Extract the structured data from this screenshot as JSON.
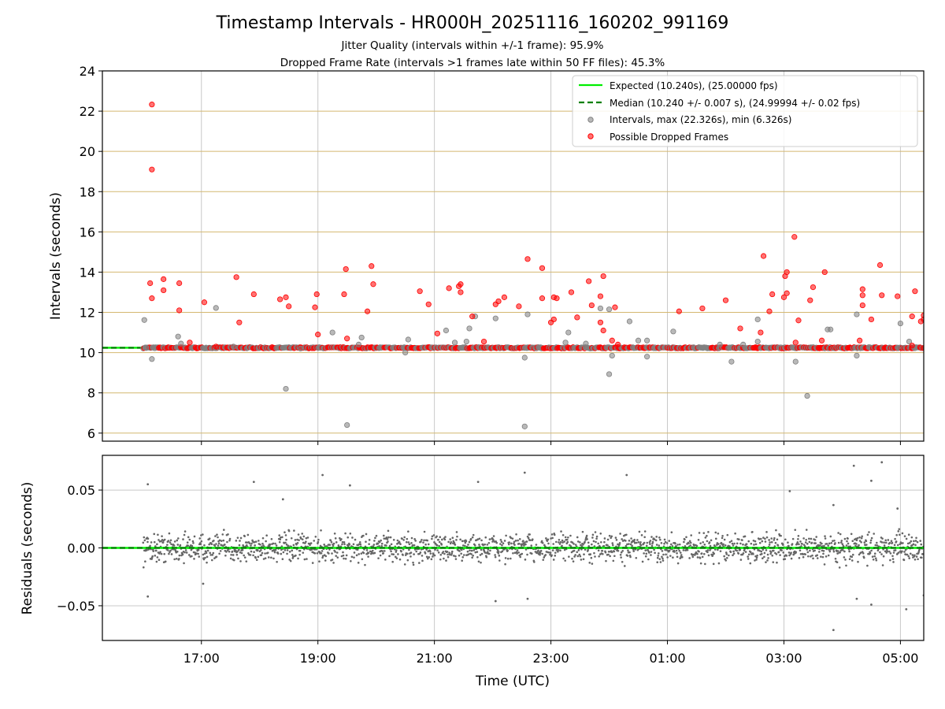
{
  "colors": {
    "expected_line": "#00ee00",
    "median_line": "#007f00",
    "intervals_marker": "#808080",
    "dropped_marker": "#ff0000",
    "residual_marker": "#666666",
    "grid_horizontal_top": "#d4b870",
    "grid": "#c8c8c8"
  },
  "chart_data": [
    {
      "type": "scatter",
      "title": "Timestamp Intervals - HR000H_20251116_160202_991169",
      "subtitle_1": "Jitter Quality (intervals within +/-1 frame): 95.9%",
      "subtitle_2": "Dropped Frame Rate (intervals >1 frames late within 50 FF files): 45.3%",
      "xlabel": "",
      "ylabel": "Intervals (seconds)",
      "ylim": [
        5.6,
        24
      ],
      "y_ticks": [
        "6",
        "8",
        "10",
        "12",
        "14",
        "16",
        "18",
        "20",
        "22",
        "24"
      ],
      "xlim_hours": [
        15.3,
        29.4
      ],
      "expected_value": 10.24,
      "median_value": 10.24,
      "legend_position": "upper-right",
      "legend": [
        "Expected (10.240s), (25.00000 fps)",
        "Median (10.240 +/- 0.007 s), (24.99994 +/- 0.02 fps)",
        "Intervals, max (22.326s), min (6.326s)",
        "Possible Dropped Frames"
      ],
      "series": [
        {
          "name": "Intervals (outliers)",
          "points": [
            [
              16.02,
              11.62
            ],
            [
              16.05,
              10.25
            ],
            [
              16.15,
              9.68
            ],
            [
              16.6,
              10.8
            ],
            [
              16.65,
              10.45
            ],
            [
              17.25,
              12.22
            ],
            [
              17.55,
              10.3
            ],
            [
              18.45,
              8.2
            ],
            [
              18.7,
              10.2
            ],
            [
              19.25,
              11.0
            ],
            [
              19.5,
              6.4
            ],
            [
              19.7,
              10.4
            ],
            [
              19.75,
              10.75
            ],
            [
              20.5,
              10.0
            ],
            [
              20.55,
              10.65
            ],
            [
              21.2,
              11.1
            ],
            [
              21.35,
              10.5
            ],
            [
              21.55,
              10.55
            ],
            [
              21.6,
              11.2
            ],
            [
              21.7,
              11.8
            ],
            [
              22.05,
              11.7
            ],
            [
              22.55,
              6.33
            ],
            [
              22.55,
              9.75
            ],
            [
              22.6,
              11.9
            ],
            [
              23.25,
              10.5
            ],
            [
              23.3,
              11.0
            ],
            [
              23.6,
              10.45
            ],
            [
              23.85,
              12.2
            ],
            [
              24.0,
              12.15
            ],
            [
              24.0,
              8.93
            ],
            [
              24.05,
              9.85
            ],
            [
              24.35,
              11.55
            ],
            [
              24.5,
              10.6
            ],
            [
              24.65,
              10.6
            ],
            [
              24.65,
              9.8
            ],
            [
              25.1,
              11.05
            ],
            [
              25.9,
              10.4
            ],
            [
              26.1,
              9.55
            ],
            [
              26.3,
              10.4
            ],
            [
              26.55,
              10.55
            ],
            [
              26.55,
              11.65
            ],
            [
              27.2,
              9.55
            ],
            [
              27.4,
              7.85
            ],
            [
              27.75,
              11.15
            ],
            [
              27.8,
              11.15
            ],
            [
              28.25,
              11.9
            ],
            [
              28.25,
              9.85
            ],
            [
              28.95,
              10.25
            ],
            [
              29.0,
              11.45
            ],
            [
              29.15,
              10.55
            ]
          ]
        },
        {
          "name": "Possible Dropped Frames",
          "points": [
            [
              16.15,
              22.33
            ],
            [
              16.15,
              19.1
            ],
            [
              16.12,
              13.45
            ],
            [
              16.15,
              12.7
            ],
            [
              16.35,
              13.65
            ],
            [
              16.35,
              13.1
            ],
            [
              16.62,
              13.45
            ],
            [
              16.62,
              12.1
            ],
            [
              16.8,
              10.5
            ],
            [
              17.05,
              12.5
            ],
            [
              17.25,
              10.3
            ],
            [
              17.6,
              13.75
            ],
            [
              17.65,
              11.5
            ],
            [
              17.9,
              12.9
            ],
            [
              18.35,
              12.65
            ],
            [
              18.45,
              12.75
            ],
            [
              18.5,
              12.3
            ],
            [
              18.95,
              12.25
            ],
            [
              18.98,
              12.9
            ],
            [
              19.0,
              10.9
            ],
            [
              19.45,
              12.9
            ],
            [
              19.48,
              14.15
            ],
            [
              19.5,
              10.7
            ],
            [
              19.85,
              12.05
            ],
            [
              19.92,
              14.3
            ],
            [
              19.95,
              13.4
            ],
            [
              20.75,
              13.05
            ],
            [
              20.9,
              12.4
            ],
            [
              21.05,
              10.95
            ],
            [
              21.25,
              13.2
            ],
            [
              21.42,
              13.3
            ],
            [
              21.45,
              13.4
            ],
            [
              21.45,
              13.0
            ],
            [
              21.65,
              11.8
            ],
            [
              21.85,
              10.55
            ],
            [
              22.05,
              12.4
            ],
            [
              22.1,
              12.55
            ],
            [
              22.2,
              12.75
            ],
            [
              22.45,
              12.3
            ],
            [
              22.6,
              14.65
            ],
            [
              22.85,
              14.2
            ],
            [
              22.85,
              12.7
            ],
            [
              23.05,
              12.75
            ],
            [
              23.0,
              11.5
            ],
            [
              23.05,
              11.65
            ],
            [
              23.1,
              12.7
            ],
            [
              23.35,
              13.0
            ],
            [
              23.45,
              11.75
            ],
            [
              23.65,
              13.55
            ],
            [
              23.7,
              12.35
            ],
            [
              23.85,
              11.5
            ],
            [
              23.9,
              11.1
            ],
            [
              23.85,
              12.8
            ],
            [
              23.9,
              13.8
            ],
            [
              24.1,
              12.25
            ],
            [
              24.05,
              10.6
            ],
            [
              24.15,
              10.4
            ],
            [
              25.2,
              12.05
            ],
            [
              25.6,
              12.2
            ],
            [
              26.0,
              12.6
            ],
            [
              26.25,
              11.2
            ],
            [
              26.65,
              14.8
            ],
            [
              26.6,
              11.0
            ],
            [
              26.75,
              12.05
            ],
            [
              26.8,
              12.9
            ],
            [
              27.0,
              12.75
            ],
            [
              27.02,
              13.8
            ],
            [
              27.05,
              14.0
            ],
            [
              27.05,
              12.95
            ],
            [
              27.18,
              15.75
            ],
            [
              27.2,
              10.5
            ],
            [
              27.25,
              11.6
            ],
            [
              27.45,
              12.6
            ],
            [
              27.5,
              13.25
            ],
            [
              27.7,
              14.0
            ],
            [
              27.65,
              10.6
            ],
            [
              28.3,
              10.6
            ],
            [
              28.35,
              12.85
            ],
            [
              28.35,
              13.15
            ],
            [
              28.35,
              12.35
            ],
            [
              28.5,
              11.65
            ],
            [
              28.65,
              14.35
            ],
            [
              28.68,
              12.85
            ],
            [
              28.95,
              12.8
            ],
            [
              29.2,
              10.35
            ],
            [
              29.2,
              11.8
            ],
            [
              29.25,
              13.05
            ],
            [
              29.35,
              11.55
            ],
            [
              29.4,
              11.85
            ],
            [
              29.4,
              11.65
            ]
          ]
        }
      ]
    },
    {
      "type": "scatter",
      "title": "",
      "xlabel": "Time (UTC)",
      "ylabel": "Residuals (seconds)",
      "ylim": [
        -0.08,
        0.08
      ],
      "y_ticks": [
        "0.05",
        "0.00",
        "−0.05"
      ],
      "xlim_hours": [
        15.3,
        29.4
      ],
      "x_ticks": [
        "17:00",
        "19:00",
        "21:00",
        "23:00",
        "01:00",
        "03:00",
        "05:00"
      ],
      "center_line": 0.0,
      "series": [
        {
          "name": "Residuals (outliers)",
          "points": [
            [
              16.08,
              0.055
            ],
            [
              16.08,
              -0.042
            ],
            [
              17.03,
              -0.031
            ],
            [
              17.9,
              0.057
            ],
            [
              18.4,
              0.042
            ],
            [
              19.08,
              0.063
            ],
            [
              19.55,
              0.054
            ],
            [
              21.75,
              0.057
            ],
            [
              22.05,
              -0.046
            ],
            [
              22.6,
              -0.044
            ],
            [
              22.55,
              0.065
            ],
            [
              24.3,
              0.063
            ],
            [
              27.1,
              0.049
            ],
            [
              27.85,
              0.037
            ],
            [
              27.85,
              -0.071
            ],
            [
              28.2,
              0.071
            ],
            [
              28.5,
              0.058
            ],
            [
              28.5,
              -0.049
            ],
            [
              28.68,
              0.074
            ],
            [
              28.25,
              -0.044
            ],
            [
              28.95,
              0.034
            ],
            [
              29.1,
              -0.053
            ],
            [
              29.4,
              -0.041
            ]
          ]
        }
      ]
    }
  ]
}
